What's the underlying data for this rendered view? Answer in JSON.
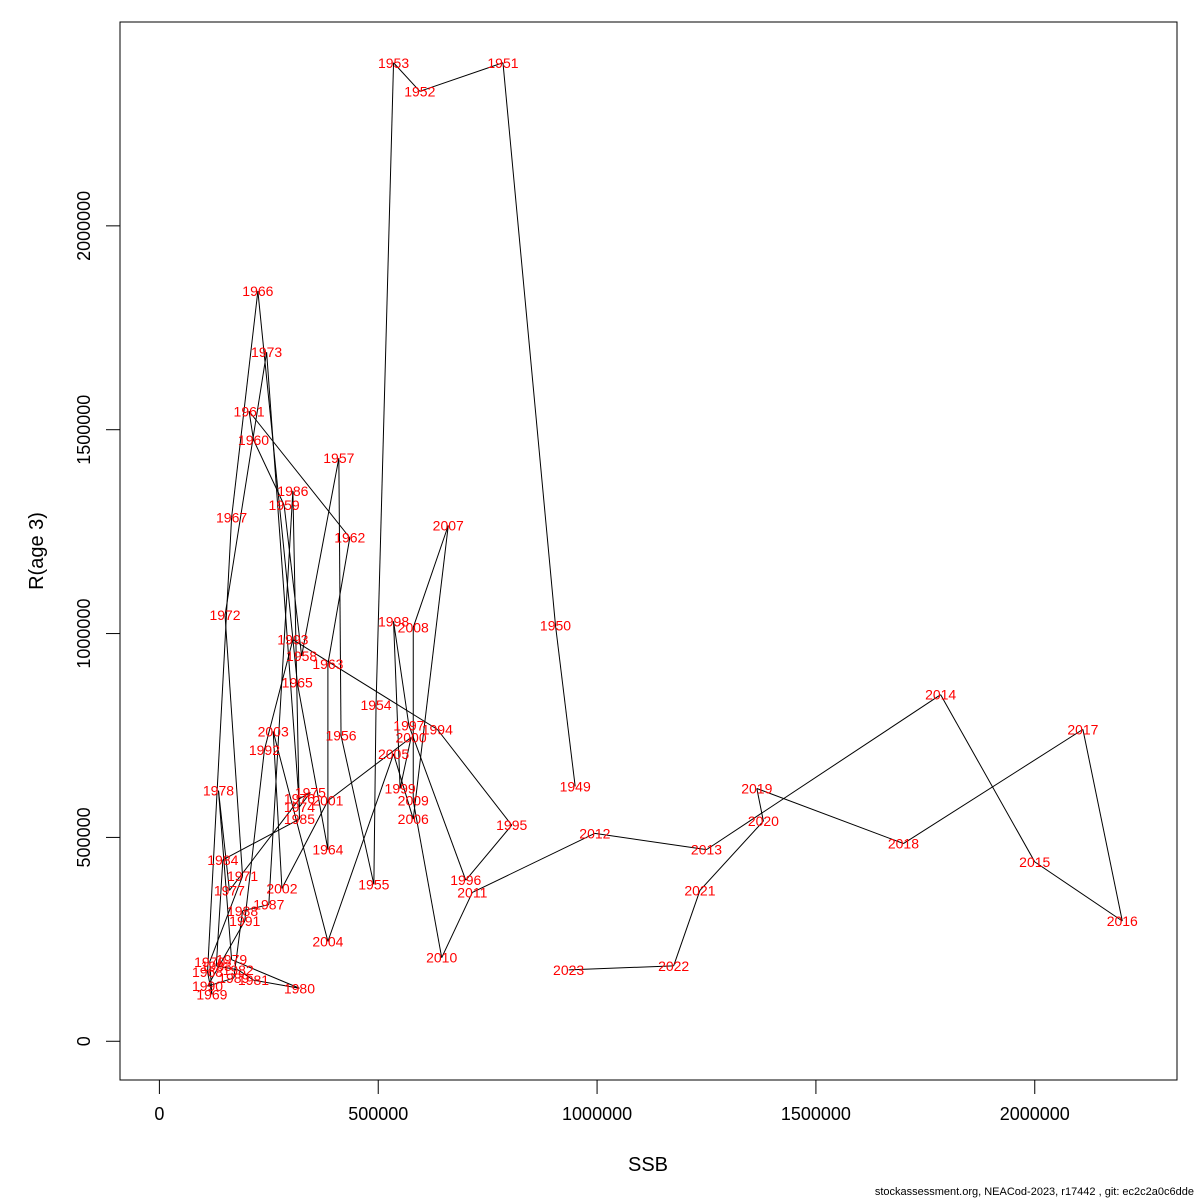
{
  "chart_data": {
    "type": "line",
    "xlabel": "SSB",
    "ylabel": "R(age 3)",
    "xlim": [
      -90000,
      2325000
    ],
    "ylim": [
      -95000,
      2500000
    ],
    "x_ticks": [
      {
        "value": 0,
        "label": "0"
      },
      {
        "value": 500000,
        "label": "500000"
      },
      {
        "value": 1000000,
        "label": "1000000"
      },
      {
        "value": 1500000,
        "label": "1500000"
      },
      {
        "value": 2000000,
        "label": "2000000"
      }
    ],
    "y_ticks": [
      {
        "value": 0,
        "label": "0"
      },
      {
        "value": 500000,
        "label": "500000"
      },
      {
        "value": 1000000,
        "label": "1000000"
      },
      {
        "value": 1500000,
        "label": "1500000"
      },
      {
        "value": 2000000,
        "label": "2000000"
      }
    ],
    "line_color": "#000000",
    "label_color": "#ff0000",
    "points": [
      {
        "year": "1949",
        "x": 950000,
        "y": 625000
      },
      {
        "year": "1950",
        "x": 905000,
        "y": 1020000
      },
      {
        "year": "1951",
        "x": 785000,
        "y": 2400000
      },
      {
        "year": "1952",
        "x": 595000,
        "y": 2330000
      },
      {
        "year": "1953",
        "x": 535000,
        "y": 2400000
      },
      {
        "year": "1954",
        "x": 495000,
        "y": 825000
      },
      {
        "year": "1955",
        "x": 490000,
        "y": 385000
      },
      {
        "year": "1956",
        "x": 415000,
        "y": 750000
      },
      {
        "year": "1957",
        "x": 410000,
        "y": 1430000
      },
      {
        "year": "1958",
        "x": 325000,
        "y": 945000
      },
      {
        "year": "1959",
        "x": 285000,
        "y": 1315000
      },
      {
        "year": "1960",
        "x": 215000,
        "y": 1475000
      },
      {
        "year": "1961",
        "x": 205000,
        "y": 1545000
      },
      {
        "year": "1962",
        "x": 435000,
        "y": 1235000
      },
      {
        "year": "1963",
        "x": 385000,
        "y": 925000
      },
      {
        "year": "1964",
        "x": 385000,
        "y": 470000
      },
      {
        "year": "1965",
        "x": 315000,
        "y": 880000
      },
      {
        "year": "1966",
        "x": 225000,
        "y": 1840000
      },
      {
        "year": "1967",
        "x": 165000,
        "y": 1285000
      },
      {
        "year": "1968",
        "x": 110000,
        "y": 170000
      },
      {
        "year": "1969",
        "x": 120000,
        "y": 115000
      },
      {
        "year": "1970",
        "x": 115000,
        "y": 195000
      },
      {
        "year": "1971",
        "x": 190000,
        "y": 405000
      },
      {
        "year": "1972",
        "x": 150000,
        "y": 1045000
      },
      {
        "year": "1973",
        "x": 245000,
        "y": 1690000
      },
      {
        "year": "1974",
        "x": 320000,
        "y": 575000
      },
      {
        "year": "1975",
        "x": 345000,
        "y": 610000
      },
      {
        "year": "1976",
        "x": 320000,
        "y": 595000
      },
      {
        "year": "1977",
        "x": 160000,
        "y": 370000
      },
      {
        "year": "1978",
        "x": 135000,
        "y": 615000
      },
      {
        "year": "1979",
        "x": 165000,
        "y": 200000
      },
      {
        "year": "1980",
        "x": 320000,
        "y": 130000
      },
      {
        "year": "1981",
        "x": 215000,
        "y": 150000
      },
      {
        "year": "1982",
        "x": 180000,
        "y": 175000
      },
      {
        "year": "1983",
        "x": 130000,
        "y": 185000
      },
      {
        "year": "1984",
        "x": 145000,
        "y": 445000
      },
      {
        "year": "1985",
        "x": 320000,
        "y": 545000
      },
      {
        "year": "1986",
        "x": 305000,
        "y": 1350000
      },
      {
        "year": "1987",
        "x": 250000,
        "y": 335000
      },
      {
        "year": "1988",
        "x": 190000,
        "y": 320000
      },
      {
        "year": "1989",
        "x": 170000,
        "y": 155000
      },
      {
        "year": "1990",
        "x": 110000,
        "y": 135000
      },
      {
        "year": "1991",
        "x": 195000,
        "y": 295000
      },
      {
        "year": "1992",
        "x": 240000,
        "y": 715000
      },
      {
        "year": "1993",
        "x": 305000,
        "y": 985000
      },
      {
        "year": "1994",
        "x": 635000,
        "y": 765000
      },
      {
        "year": "1995",
        "x": 805000,
        "y": 530000
      },
      {
        "year": "1996",
        "x": 700000,
        "y": 395000
      },
      {
        "year": "1997",
        "x": 570000,
        "y": 775000
      },
      {
        "year": "1998",
        "x": 535000,
        "y": 1030000
      },
      {
        "year": "1999",
        "x": 550000,
        "y": 620000
      },
      {
        "year": "2000",
        "x": 575000,
        "y": 745000
      },
      {
        "year": "2001",
        "x": 385000,
        "y": 590000
      },
      {
        "year": "2002",
        "x": 280000,
        "y": 375000
      },
      {
        "year": "2003",
        "x": 260000,
        "y": 760000
      },
      {
        "year": "2004",
        "x": 385000,
        "y": 245000
      },
      {
        "year": "2005",
        "x": 535000,
        "y": 705000
      },
      {
        "year": "2006",
        "x": 580000,
        "y": 545000
      },
      {
        "year": "2007",
        "x": 660000,
        "y": 1265000
      },
      {
        "year": "2008",
        "x": 580000,
        "y": 1015000
      },
      {
        "year": "2009",
        "x": 580000,
        "y": 590000
      },
      {
        "year": "2010",
        "x": 645000,
        "y": 205000
      },
      {
        "year": "2011",
        "x": 715000,
        "y": 365000
      },
      {
        "year": "2012",
        "x": 995000,
        "y": 510000
      },
      {
        "year": "2013",
        "x": 1250000,
        "y": 470000
      },
      {
        "year": "2014",
        "x": 1785000,
        "y": 850000
      },
      {
        "year": "2015",
        "x": 2000000,
        "y": 440000
      },
      {
        "year": "2016",
        "x": 2200000,
        "y": 295000
      },
      {
        "year": "2017",
        "x": 2110000,
        "y": 765000
      },
      {
        "year": "2018",
        "x": 1700000,
        "y": 485000
      },
      {
        "year": "2019",
        "x": 1365000,
        "y": 620000
      },
      {
        "year": "2020",
        "x": 1380000,
        "y": 540000
      },
      {
        "year": "2021",
        "x": 1235000,
        "y": 370000
      },
      {
        "year": "2022",
        "x": 1175000,
        "y": 185000
      },
      {
        "year": "2023",
        "x": 935000,
        "y": 175000
      }
    ]
  },
  "footer": {
    "text": "stockassessment.org, NEACod-2023, r17442 , git: ec2c2a0c6dde"
  }
}
